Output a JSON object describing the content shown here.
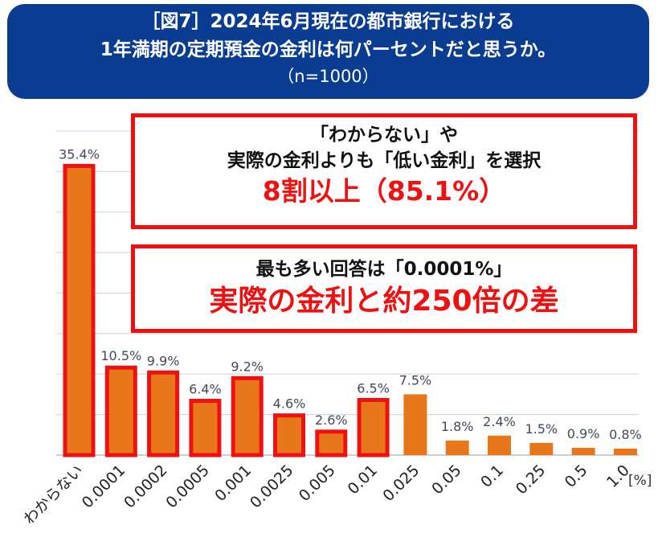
{
  "title": {
    "line1": "［図7］2024年6月現在の都市銀行における",
    "line2": "1年満期の定期預金の金利は何パーセントだと思うか。",
    "line3": "（n=1000）"
  },
  "callouts": {
    "first": {
      "line1": "「わからない」や",
      "line2": "実際の金利よりも「低い金利」を選択",
      "highlight": "8割以上（85.1%）"
    },
    "second": {
      "line1": "最も多い回答は「0.0001%」",
      "highlight": "実際の金利と約250倍の差"
    }
  },
  "colors": {
    "title_bg": "#0a3d91",
    "bar": "#e8761a",
    "highlight_border": "#ee1111",
    "gridline": "#d9d9d9"
  },
  "chart_data": {
    "type": "bar",
    "title": "",
    "xlabel": "",
    "ylabel": "",
    "unit": "[%]",
    "categories": [
      "わからない",
      "0.0001",
      "0.0002",
      "0.0005",
      "0.001",
      "0.0025",
      "0.005",
      "0.01",
      "0.025",
      "0.05",
      "0.1",
      "0.25",
      "0.5",
      "1.0"
    ],
    "values": [
      35.4,
      10.5,
      9.9,
      6.4,
      9.2,
      4.6,
      2.6,
      6.5,
      7.5,
      1.8,
      2.4,
      1.5,
      0.9,
      0.8
    ],
    "value_labels": [
      "35.4%",
      "10.5%",
      "9.9%",
      "6.4%",
      "9.2%",
      "4.6%",
      "2.6%",
      "6.5%",
      "7.5%",
      "1.8%",
      "2.4%",
      "1.5%",
      "0.9%",
      "0.8%"
    ],
    "highlighted": [
      true,
      true,
      true,
      true,
      true,
      true,
      true,
      true,
      false,
      false,
      false,
      false,
      false,
      false
    ],
    "ylim": [
      0,
      40
    ],
    "grid": true
  }
}
